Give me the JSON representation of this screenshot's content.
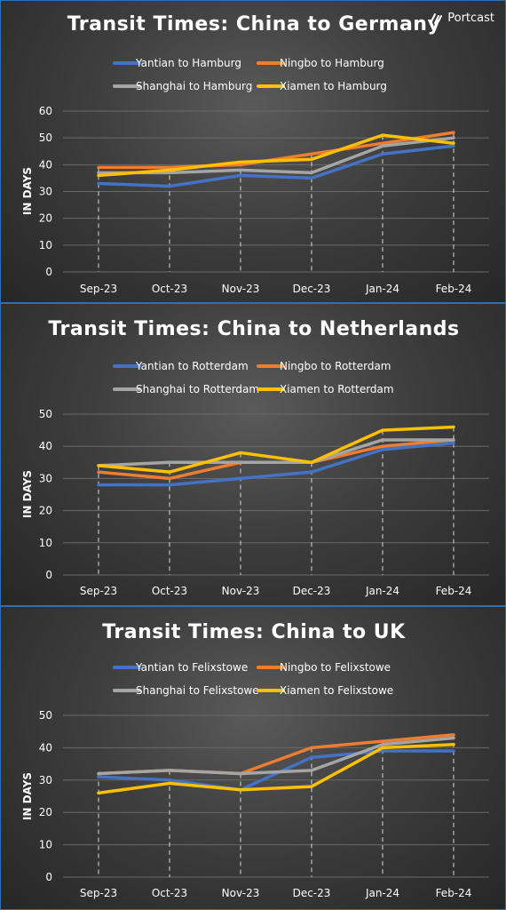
{
  "brand": {
    "name": "Portcast",
    "logo_icon": "portcast-logo-icon"
  },
  "chart_data": [
    {
      "type": "line",
      "title": "Transit Times: China to Germany",
      "ylabel": "IN DAYS",
      "categories": [
        "Sep-23",
        "Oct-23",
        "Nov-23",
        "Dec-23",
        "Jan-24",
        "Feb-24"
      ],
      "ylim": [
        0,
        60
      ],
      "yticks": [
        0,
        10,
        20,
        30,
        40,
        50,
        60
      ],
      "series": [
        {
          "name": "Yantian to Hamburg",
          "color": "#4472C4",
          "values": [
            33,
            32,
            36,
            35,
            44,
            47
          ]
        },
        {
          "name": "Ningbo to Hamburg",
          "color": "#ED7D31",
          "values": [
            39,
            39,
            40,
            44,
            48,
            52
          ]
        },
        {
          "name": "Shanghai to Hamburg",
          "color": "#A5A5A5",
          "values": [
            37,
            37,
            38,
            37,
            47,
            50
          ]
        },
        {
          "name": "Xiamen to Hamburg",
          "color": "#FFC000",
          "values": [
            36,
            38,
            41,
            42,
            51,
            48
          ]
        }
      ],
      "legend_position": "top",
      "grid": true
    },
    {
      "type": "line",
      "title": "Transit Times: China to Netherlands",
      "ylabel": "IN DAYS",
      "categories": [
        "Sep-23",
        "Oct-23",
        "Nov-23",
        "Dec-23",
        "Jan-24",
        "Feb-24"
      ],
      "ylim": [
        0,
        50
      ],
      "yticks": [
        0,
        10,
        20,
        30,
        40,
        50
      ],
      "series": [
        {
          "name": "Yantian to Rotterdam",
          "color": "#4472C4",
          "values": [
            28,
            28,
            30,
            32,
            39,
            41
          ]
        },
        {
          "name": "Ningbo to Rotterdam",
          "color": "#ED7D31",
          "values": [
            32,
            30,
            35,
            35,
            40,
            42
          ]
        },
        {
          "name": "Shanghai to Rotterdam",
          "color": "#A5A5A5",
          "values": [
            34,
            35,
            35,
            35,
            42,
            42
          ]
        },
        {
          "name": "Xiamen to Rotterdam",
          "color": "#FFC000",
          "values": [
            34,
            32,
            38,
            35,
            45,
            46
          ]
        }
      ],
      "legend_position": "top",
      "grid": true
    },
    {
      "type": "line",
      "title": "Transit Times: China to UK",
      "ylabel": "IN DAYS",
      "categories": [
        "Sep-23",
        "Oct-23",
        "Nov-23",
        "Dec-23",
        "Jan-24",
        "Feb-24"
      ],
      "ylim": [
        0,
        50
      ],
      "yticks": [
        0,
        10,
        20,
        30,
        40,
        50
      ],
      "series": [
        {
          "name": "Yantian to Felixstowe",
          "color": "#4472C4",
          "values": [
            31,
            30,
            27,
            37,
            39,
            39
          ]
        },
        {
          "name": "Ningbo to Felixstowe",
          "color": "#ED7D31",
          "values": [
            32,
            33,
            32,
            40,
            42,
            44
          ]
        },
        {
          "name": "Shanghai to Felixstowe",
          "color": "#A5A5A5",
          "values": [
            32,
            33,
            32,
            33,
            41,
            43
          ]
        },
        {
          "name": "Xiamen to Felixstowe",
          "color": "#FFC000",
          "values": [
            26,
            29,
            27,
            28,
            40,
            41
          ]
        }
      ],
      "legend_position": "top",
      "grid": true
    }
  ]
}
